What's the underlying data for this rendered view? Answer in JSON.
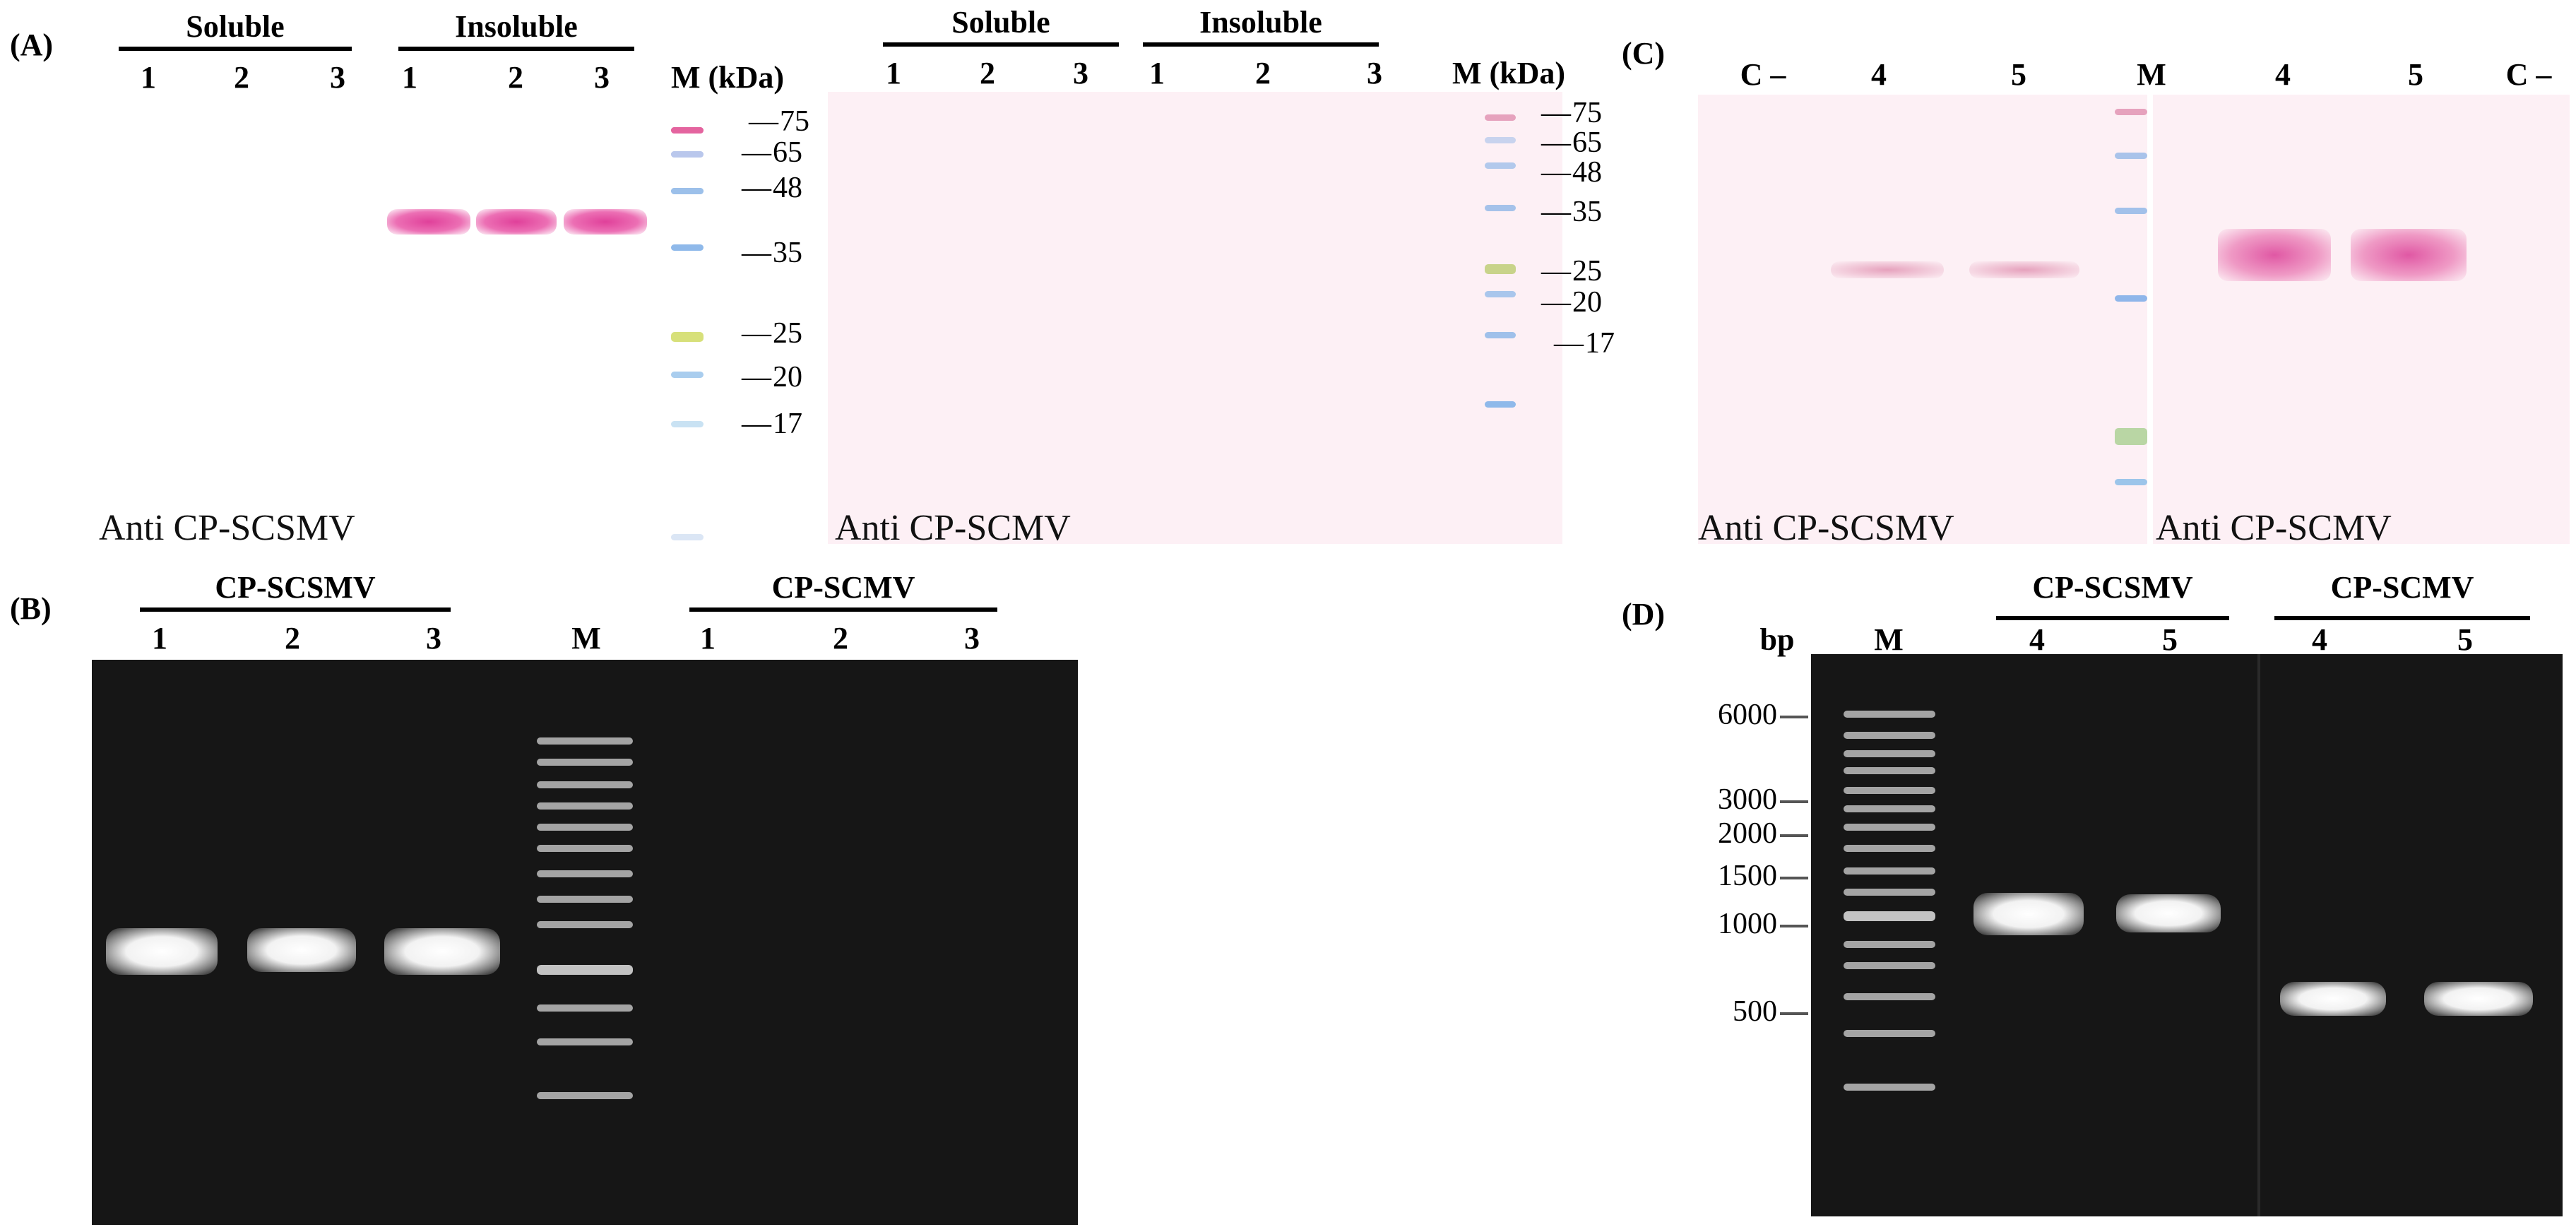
{
  "panels": {
    "A": {
      "label": "(A)",
      "blot1": {
        "groups": [
          "Soluble",
          "Insoluble"
        ],
        "lanes": [
          "1",
          "2",
          "3",
          "1",
          "2",
          "3"
        ],
        "marker_header": "M (kDa)",
        "marker_sizes": [
          "75",
          "65",
          "48",
          "35",
          "25",
          "20",
          "17"
        ],
        "antibody": "Anti CP-SCSMV"
      },
      "blot2": {
        "groups": [
          "Soluble",
          "Insoluble"
        ],
        "lanes": [
          "1",
          "2",
          "3",
          "1",
          "2",
          "3"
        ],
        "marker_header": "M (kDa)",
        "marker_sizes": [
          "75",
          "65",
          "48",
          "35",
          "25",
          "20",
          "17"
        ],
        "antibody": "Anti CP-SCMV"
      }
    },
    "B": {
      "label": "(B)",
      "groups": [
        "CP-SCSMV",
        "CP-SCMV"
      ],
      "lanes_left": [
        "1",
        "2",
        "3"
      ],
      "marker": "M",
      "lanes_right": [
        "1",
        "2",
        "3"
      ]
    },
    "C": {
      "label": "(C)",
      "lanes": [
        "C –",
        "4",
        "5",
        "M",
        "4",
        "5",
        "C –"
      ],
      "antibody_left": "Anti CP-SCSMV",
      "antibody_right": "Anti CP-SCMV"
    },
    "D": {
      "label": "(D)",
      "unit": "bp",
      "marker": "M",
      "groups": [
        "CP-SCSMV",
        "CP-SCMV"
      ],
      "lanes": [
        "4",
        "5",
        "4",
        "5"
      ],
      "sizes": [
        "6000",
        "3000",
        "2000",
        "1500",
        "1000",
        "500"
      ]
    }
  },
  "colors": {
    "membrane": "#fdf0f5",
    "gel": "#161616",
    "band_magenta": "#e0409a",
    "band_faint": "#e6a2bd"
  }
}
